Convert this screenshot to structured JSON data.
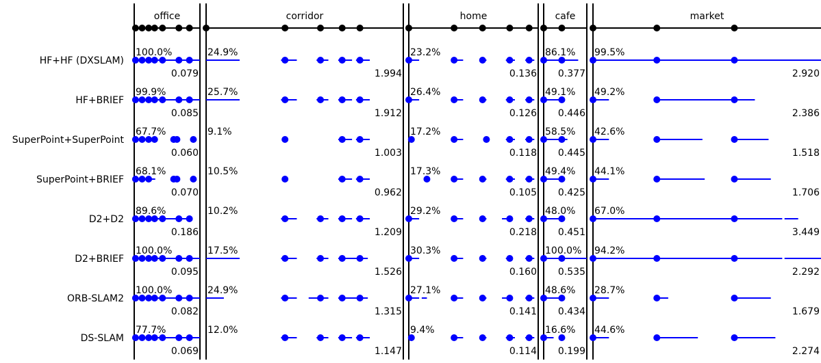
{
  "chart_data": {
    "type": "scatter",
    "scenes": [
      "office",
      "corridor",
      "home",
      "cafe",
      "market"
    ],
    "methods": [
      "HF+HF (DXSLAM)",
      "HF+BRIEF",
      "SuperPoint+SuperPoint",
      "SuperPoint+BRIEF",
      "D2+D2",
      "D2+BRIEF",
      "ORB-SLAM2",
      "DS-SLAM"
    ],
    "percentages": [
      [
        "100.0%",
        "24.9%",
        "23.2%",
        "86.1%",
        "99.5%"
      ],
      [
        "99.9%",
        "25.7%",
        "26.4%",
        "49.1%",
        "49.2%"
      ],
      [
        "67.7%",
        "9.1%",
        "17.2%",
        "58.5%",
        "42.6%"
      ],
      [
        "68.1%",
        "10.5%",
        "17.3%",
        "49.4%",
        "44.1%"
      ],
      [
        "89.6%",
        "10.2%",
        "29.2%",
        "48.0%",
        "67.0%"
      ],
      [
        "100.0%",
        "17.5%",
        "30.3%",
        "100.0%",
        "94.2%"
      ],
      [
        "100.0%",
        "24.9%",
        "27.1%",
        "48.6%",
        "28.7%"
      ],
      [
        "77.7%",
        "12.0%",
        "9.4%",
        "16.6%",
        "44.6%"
      ]
    ],
    "errors": [
      [
        "0.079",
        "1.994",
        "0.136",
        "0.377",
        "2.920"
      ],
      [
        "0.085",
        "1.912",
        "0.126",
        "0.446",
        "2.386"
      ],
      [
        "0.060",
        "1.003",
        "0.118",
        "0.445",
        "1.518"
      ],
      [
        "0.070",
        "0.962",
        "0.105",
        "0.425",
        "1.706"
      ],
      [
        "0.186",
        "1.209",
        "0.218",
        "0.451",
        "3.449"
      ],
      [
        "0.095",
        "1.526",
        "0.160",
        "0.535",
        "2.292"
      ],
      [
        "0.082",
        "1.315",
        "0.141",
        "0.434",
        "1.679"
      ],
      [
        "0.069",
        "1.147",
        "0.114",
        "0.199",
        "2.274"
      ]
    ],
    "reference_points": [
      [
        0.02,
        0.12,
        0.22,
        0.31,
        0.43,
        0.68,
        0.84
      ],
      [
        0.0,
        0.4,
        0.58,
        0.69,
        0.78
      ],
      [
        0.0,
        0.35,
        0.57,
        0.78,
        0.93
      ],
      [
        0.0,
        0.42
      ],
      [
        0.0,
        0.28,
        0.62
      ]
    ],
    "track_points": [
      [
        [
          0.02,
          0.12,
          0.22,
          0.31,
          0.43,
          0.68,
          0.84
        ],
        [
          0.4,
          0.58,
          0.69,
          0.78
        ],
        [
          0.0,
          0.35,
          0.57,
          0.78,
          0.93
        ],
        [
          0.0,
          0.42
        ],
        [
          0.0,
          0.28,
          0.62
        ]
      ],
      [
        [
          0.02,
          0.12,
          0.22,
          0.31,
          0.43,
          0.68,
          0.84
        ],
        [
          0.4,
          0.58,
          0.69,
          0.78
        ],
        [
          0.0,
          0.35,
          0.57,
          0.78,
          0.93
        ],
        [
          0.0,
          0.42
        ],
        [
          0.0,
          0.28,
          0.62
        ]
      ],
      [
        [
          0.02,
          0.12,
          0.22,
          0.31,
          0.6,
          0.65,
          0.9
        ],
        [
          0.4,
          0.69,
          0.78
        ],
        [
          0.02,
          0.35,
          0.6,
          0.78,
          0.93
        ],
        [
          0.0,
          0.42
        ],
        [
          0.0,
          0.28,
          0.62
        ]
      ],
      [
        [
          0.02,
          0.12,
          0.22,
          0.6,
          0.65,
          0.9
        ],
        [
          0.4,
          0.69,
          0.78
        ],
        [
          0.14,
          0.35,
          0.57,
          0.78,
          0.93
        ],
        [
          0.0,
          0.42
        ],
        [
          0.0,
          0.28,
          0.62
        ]
      ],
      [
        [
          0.02,
          0.12,
          0.22,
          0.31,
          0.43,
          0.68,
          0.84
        ],
        [
          0.4,
          0.58,
          0.69,
          0.78
        ],
        [
          0.0,
          0.35,
          0.57,
          0.78,
          0.93
        ],
        [
          0.0,
          0.42
        ],
        [
          0.0,
          0.28,
          0.62
        ]
      ],
      [
        [
          0.02,
          0.12,
          0.22,
          0.31,
          0.43,
          0.68,
          0.84
        ],
        [
          0.4,
          0.58,
          0.69,
          0.78
        ],
        [
          0.0,
          0.35,
          0.57,
          0.78,
          0.93
        ],
        [
          0.0,
          0.42
        ],
        [
          0.0,
          0.28,
          0.62
        ]
      ],
      [
        [
          0.02,
          0.12,
          0.22,
          0.31,
          0.43,
          0.68,
          0.84
        ],
        [
          0.4,
          0.58,
          0.69,
          0.78
        ],
        [
          0.0,
          0.35,
          0.57,
          0.78,
          0.93
        ],
        [
          0.0,
          0.42
        ],
        [
          0.0,
          0.28,
          0.62
        ]
      ],
      [
        [
          0.02,
          0.12,
          0.22,
          0.31,
          0.43,
          0.68,
          0.84
        ],
        [
          0.4,
          0.58,
          0.69,
          0.78
        ],
        [
          0.02,
          0.35,
          0.57,
          0.78,
          0.93
        ],
        [
          0.0,
          0.42
        ],
        [
          0.0,
          0.28,
          0.62
        ]
      ]
    ],
    "track_segments": [
      [
        [
          [
            0.02,
            0.86
          ],
          [
            0.86,
            1.0
          ]
        ],
        [
          [
            0.0,
            0.17
          ],
          [
            0.38,
            0.46
          ],
          [
            0.56,
            0.62
          ],
          [
            0.67,
            0.74
          ],
          [
            0.76,
            0.83
          ]
        ],
        [
          [
            0.0,
            0.08
          ],
          [
            0.33,
            0.42
          ],
          [
            0.55,
            0.6
          ],
          [
            0.75,
            0.82
          ],
          [
            0.9,
            0.97
          ]
        ],
        [
          [
            0.0,
            0.8
          ]
        ],
        [
          [
            0.0,
            1.0
          ]
        ]
      ],
      [
        [
          [
            0.02,
            0.86
          ],
          [
            0.86,
            1.0
          ]
        ],
        [
          [
            0.0,
            0.17
          ],
          [
            0.38,
            0.46
          ],
          [
            0.56,
            0.62
          ],
          [
            0.67,
            0.74
          ],
          [
            0.76,
            0.83
          ]
        ],
        [
          [
            0.0,
            0.08
          ],
          [
            0.33,
            0.42
          ],
          [
            0.55,
            0.6
          ],
          [
            0.75,
            0.82
          ],
          [
            0.9,
            0.97
          ]
        ],
        [
          [
            0.0,
            0.47
          ]
        ],
        [
          [
            0.0,
            0.07
          ],
          [
            0.28,
            0.71
          ]
        ]
      ],
      [
        [
          [
            0.02,
            0.32
          ],
          [
            0.57,
            0.66
          ]
        ],
        [
          [
            0.67,
            0.74
          ],
          [
            0.76,
            0.83
          ]
        ],
        [
          [
            0.0,
            0.03
          ],
          [
            0.33,
            0.42
          ],
          [
            0.75,
            0.82
          ],
          [
            0.9,
            0.97
          ]
        ],
        [
          [
            0.0,
            0.55
          ]
        ],
        [
          [
            0.0,
            0.07
          ],
          [
            0.28,
            0.48
          ],
          [
            0.62,
            0.77
          ]
        ]
      ],
      [
        [
          [
            0.02,
            0.32
          ],
          [
            0.57,
            0.66
          ]
        ],
        [
          [
            0.67,
            0.74
          ],
          [
            0.76,
            0.83
          ]
        ],
        [
          [
            0.33,
            0.42
          ],
          [
            0.55,
            0.6
          ],
          [
            0.75,
            0.82
          ],
          [
            0.9,
            0.97
          ]
        ],
        [
          [
            0.0,
            0.47
          ]
        ],
        [
          [
            0.0,
            0.07
          ],
          [
            0.28,
            0.49
          ],
          [
            0.62,
            0.78
          ]
        ]
      ],
      [
        [
          [
            0.02,
            0.86
          ]
        ],
        [
          [
            0.38,
            0.46
          ],
          [
            0.56,
            0.62
          ],
          [
            0.67,
            0.74
          ],
          [
            0.76,
            0.83
          ]
        ],
        [
          [
            0.0,
            0.08
          ],
          [
            0.33,
            0.42
          ],
          [
            0.55,
            0.6
          ],
          [
            0.72,
            0.8
          ],
          [
            0.9,
            0.97
          ]
        ],
        [
          [
            0.0,
            0.46
          ]
        ],
        [
          [
            0.0,
            0.83
          ],
          [
            0.84,
            0.9
          ]
        ]
      ],
      [
        [
          [
            0.02,
            0.86
          ],
          [
            0.86,
            1.0
          ]
        ],
        [
          [
            0.0,
            0.17
          ],
          [
            0.38,
            0.46
          ],
          [
            0.56,
            0.62
          ],
          [
            0.67,
            0.82
          ]
        ],
        [
          [
            0.0,
            0.08
          ],
          [
            0.33,
            0.42
          ],
          [
            0.55,
            0.6
          ],
          [
            0.75,
            0.8
          ],
          [
            0.9,
            0.97
          ]
        ],
        [
          [
            0.0,
            1.0
          ]
        ],
        [
          [
            0.0,
            0.83
          ],
          [
            0.84,
            1.0
          ]
        ]
      ],
      [
        [
          [
            0.02,
            0.86
          ],
          [
            0.86,
            1.0
          ]
        ],
        [
          [
            0.0,
            0.09
          ],
          [
            0.38,
            0.46
          ],
          [
            0.52,
            0.62
          ],
          [
            0.67,
            0.82
          ]
        ],
        [
          [
            0.0,
            0.08
          ],
          [
            0.1,
            0.14
          ],
          [
            0.33,
            0.42
          ],
          [
            0.55,
            0.6
          ],
          [
            0.72,
            0.8
          ],
          [
            0.9,
            0.97
          ]
        ],
        [
          [
            0.0,
            0.45
          ]
        ],
        [
          [
            0.0,
            0.07
          ],
          [
            0.28,
            0.33
          ],
          [
            0.62,
            0.78
          ],
          [
            1.0,
            1.0
          ]
        ]
      ],
      [
        [
          [
            0.02,
            0.86
          ],
          [
            0.86,
            1.0
          ]
        ],
        [
          [
            0.38,
            0.46
          ],
          [
            0.56,
            0.62
          ],
          [
            0.67,
            0.74
          ],
          [
            0.76,
            0.83
          ]
        ],
        [
          [
            0.33,
            0.42
          ],
          [
            0.55,
            0.6
          ],
          [
            0.75,
            0.82
          ],
          [
            0.9,
            0.97
          ]
        ],
        [
          [
            0.0,
            0.23
          ]
        ],
        [
          [
            0.0,
            0.07
          ],
          [
            0.28,
            0.46
          ],
          [
            0.62,
            0.8
          ]
        ]
      ]
    ]
  }
}
